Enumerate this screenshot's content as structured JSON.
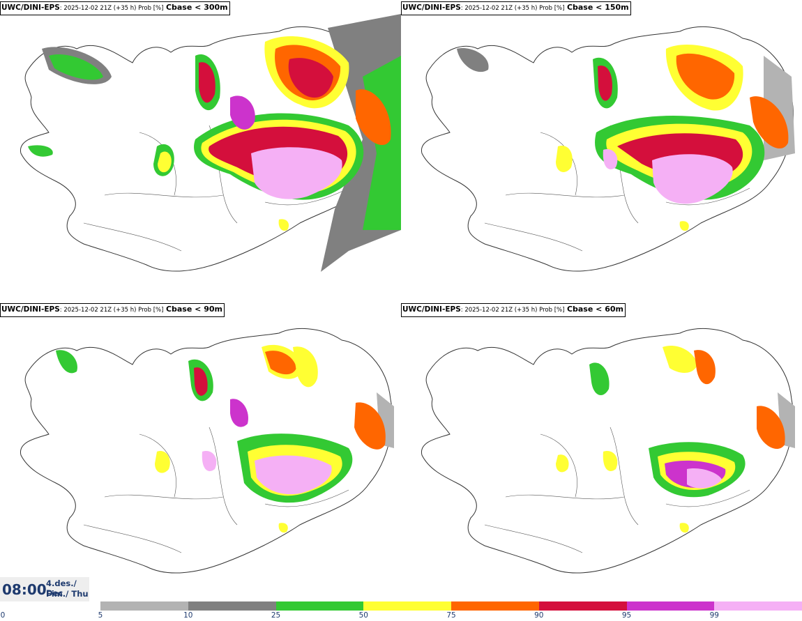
{
  "panels": [
    {
      "model": "UWC/DINI-EPS",
      "meta": ": 2025-12-02 21Z (+35 h) Prob [%]",
      "threshold": "Cbase < 300m"
    },
    {
      "model": "UWC/DINI-EPS",
      "meta": ": 2025-12-02 21Z (+35 h) Prob [%]",
      "threshold": "Cbase < 150m"
    },
    {
      "model": "UWC/DINI-EPS",
      "meta": ": 2025-12-02 21Z (+35 h) Prob [%]",
      "threshold": "Cbase < 90m"
    },
    {
      "model": "UWC/DINI-EPS",
      "meta": ": 2025-12-02 21Z (+35 h) Prob [%]",
      "threshold": "Cbase < 60m"
    }
  ],
  "valid_time": {
    "clock": "08:00",
    "date_line1": "4.des./ Dec",
    "date_line2": "Fim./ Thu"
  },
  "colorbar": {
    "ticks": [
      "0",
      "5",
      "10",
      "25",
      "50",
      "75",
      "90",
      "95",
      "99"
    ],
    "colors": [
      "#b3b3b3",
      "#808080",
      "#33c933",
      "#ffff33",
      "#ff6600",
      "#d40f3c",
      "#cc33cc",
      "#f5b0f5"
    ]
  },
  "map_colors": {
    "land": "#ffffff",
    "coast": "#333333"
  }
}
